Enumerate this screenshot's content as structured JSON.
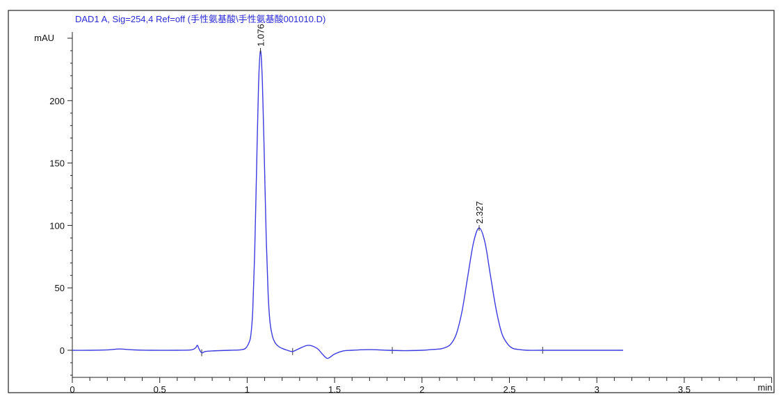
{
  "chart_data": {
    "type": "line",
    "title": "DAD1 A, Sig=254,4 Ref=off (手性氨基酸\\手性氨基酸001010.D)",
    "xlabel": "min",
    "ylabel": "mAU",
    "xlim": [
      0,
      4.0
    ],
    "ylim": [
      -22,
      255
    ],
    "xticks": [
      0,
      0.5,
      1,
      1.5,
      2,
      2.5,
      3,
      3.5
    ],
    "xtick_labels": [
      "0",
      "0.5",
      "1",
      "1.5",
      "2",
      "2.5",
      "3",
      "3.5"
    ],
    "yticks": [
      0,
      50,
      100,
      150,
      200
    ],
    "ytick_labels": [
      "0",
      "50",
      "100",
      "150",
      "200"
    ],
    "grid": false,
    "line_color": "#3a3ae0",
    "title_color": "#2b2bd6",
    "peaks": [
      {
        "label": "1.076",
        "x": 1.076,
        "y": 240
      },
      {
        "label": "2.327",
        "x": 2.327,
        "y": 98
      }
    ],
    "integration_marks": [
      0.74,
      1.26,
      1.83,
      2.69
    ],
    "series": [
      {
        "x": [
          0,
          0.1,
          0.2,
          0.27,
          0.35,
          0.45,
          0.6,
          0.68,
          0.705,
          0.715,
          0.725,
          0.74,
          0.76,
          0.8,
          0.9,
          0.96,
          0.99,
          1.01,
          1.021,
          1.032,
          1.043,
          1.054,
          1.065,
          1.076,
          1.087,
          1.098,
          1.109,
          1.12,
          1.131,
          1.145,
          1.16,
          1.18,
          1.2,
          1.23,
          1.26,
          1.3,
          1.35,
          1.4,
          1.43,
          1.46,
          1.5,
          1.55,
          1.6,
          1.7,
          1.8,
          1.9,
          2.0,
          2.05,
          2.1,
          2.13,
          2.165,
          2.197,
          2.23,
          2.262,
          2.295,
          2.327,
          2.36,
          2.392,
          2.425,
          2.457,
          2.49,
          2.52,
          2.56,
          2.6,
          2.7,
          3.0,
          3.15
        ],
        "y": [
          0,
          0,
          0.3,
          1,
          0.3,
          0,
          0,
          0.3,
          2,
          4,
          1,
          -2,
          -1,
          -0.5,
          0,
          0.3,
          1.5,
          6,
          12,
          32,
          78,
          146,
          212,
          240,
          215,
          155,
          90,
          45,
          22,
          11,
          6,
          3,
          1.5,
          0,
          -1,
          1.5,
          4,
          1.5,
          -3,
          -6.5,
          -3,
          -0.5,
          0,
          0.5,
          0,
          -0.3,
          0,
          0.5,
          1,
          2,
          5,
          13.3,
          32,
          59.4,
          86.5,
          98,
          86.5,
          59.4,
          32,
          13.3,
          5,
          1.5,
          0.5,
          0,
          0,
          0,
          0
        ]
      }
    ]
  }
}
